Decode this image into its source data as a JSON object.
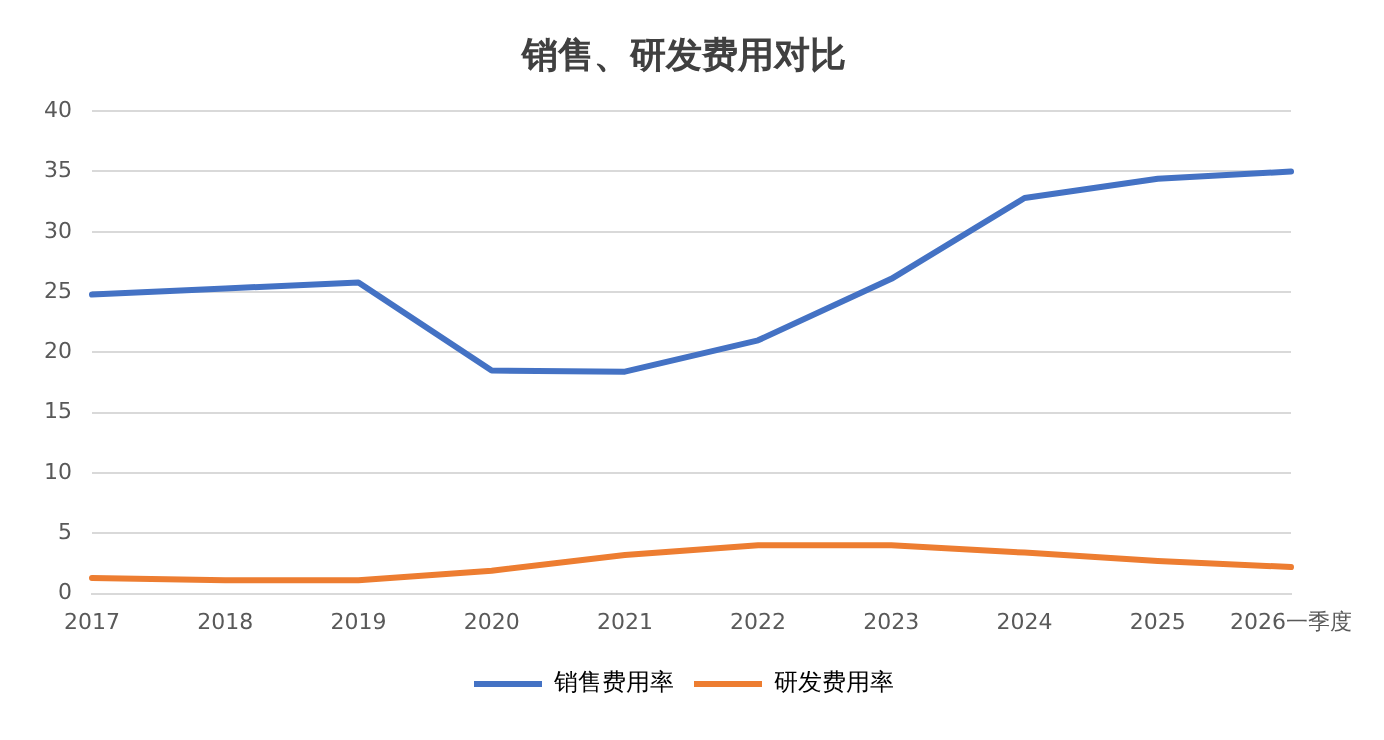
{
  "chart_data": {
    "type": "line",
    "title": "销售、研发费用对比",
    "categories": [
      "2017",
      "2018",
      "2019",
      "2020",
      "2021",
      "2022",
      "2023",
      "2024",
      "2025",
      "2026一季度"
    ],
    "series": [
      {
        "name": "销售费用率",
        "color": "#4472c4",
        "values": [
          24.8,
          25.3,
          25.8,
          18.5,
          18.4,
          21.0,
          26.1,
          32.8,
          34.4,
          35.0
        ]
      },
      {
        "name": "研发费用率",
        "color": "#ed7d31",
        "values": [
          1.3,
          1.1,
          1.1,
          1.9,
          3.2,
          4.0,
          4.0,
          3.4,
          2.7,
          2.2
        ]
      }
    ],
    "ylim": [
      0,
      40
    ],
    "yticks": [
      0,
      5,
      10,
      15,
      20,
      25,
      30,
      35,
      40
    ],
    "grid": "y",
    "legend": "bottom",
    "marker": "none",
    "line_style": "solid"
  }
}
